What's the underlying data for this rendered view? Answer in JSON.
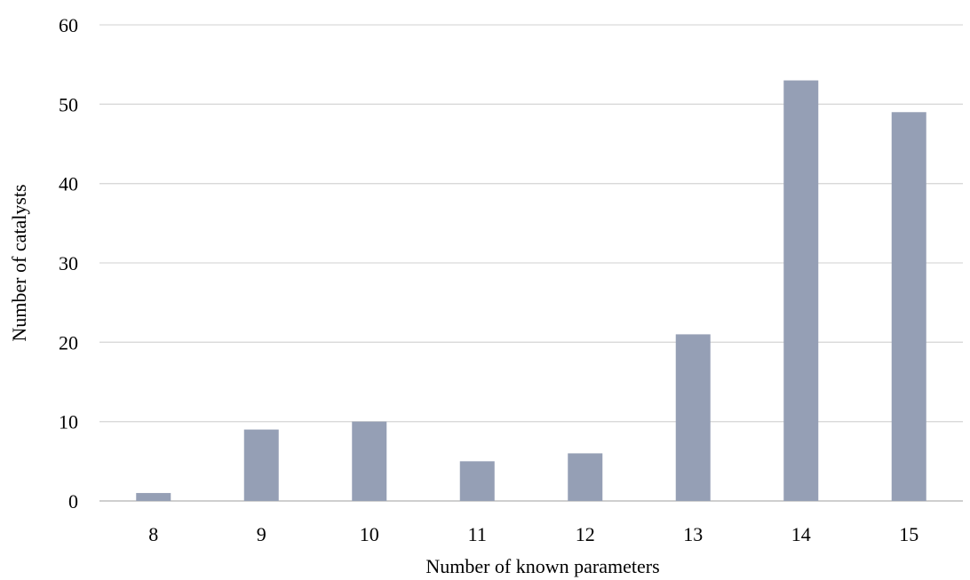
{
  "chart_data": {
    "type": "bar",
    "categories": [
      "8",
      "9",
      "10",
      "11",
      "12",
      "13",
      "14",
      "15"
    ],
    "values": [
      1,
      9,
      10,
      5,
      6,
      21,
      53,
      49
    ],
    "title": "",
    "xlabel": "Number of known parameters",
    "ylabel": "Number of catalysts",
    "ylim": [
      0,
      60
    ],
    "yticks": [
      0,
      10,
      20,
      30,
      40,
      50,
      60
    ],
    "grid": true,
    "legend": "none",
    "bar_color": "#959fb5"
  }
}
